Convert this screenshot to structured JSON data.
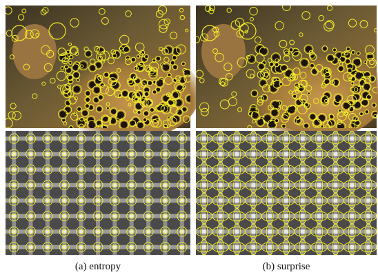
{
  "figure": {
    "panels": [
      {
        "caption": "(a) entropy"
      },
      {
        "caption": "(b) surprise"
      }
    ]
  }
}
